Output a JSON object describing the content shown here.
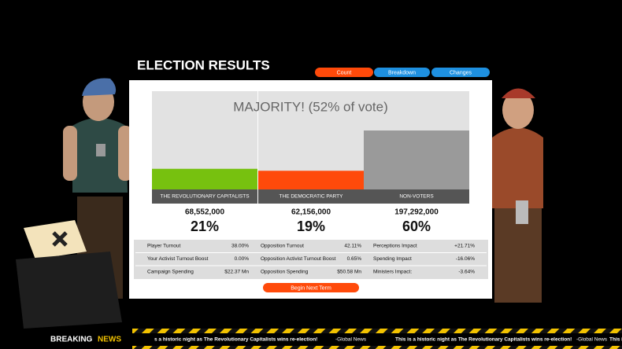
{
  "header": {
    "title": "ELECTION RESULTS",
    "tabs": [
      "Count",
      "Breakdown",
      "Changes"
    ]
  },
  "result": {
    "headline": "MAJORITY! (52% of vote)",
    "parties": [
      {
        "name": "THE REVOLUTIONARY CAPITALISTS",
        "votes": "68,552,000",
        "share": 21,
        "share_label": "21%",
        "color": "#77c10f"
      },
      {
        "name": "THE DEMOCRATIC PARTY",
        "votes": "62,156,000",
        "share": 19,
        "share_label": "19%",
        "color": "#ff4a0a"
      },
      {
        "name": "NON-VOTERS",
        "votes": "197,292,000",
        "share": 60,
        "share_label": "60%",
        "color": "#9a9a9a"
      }
    ]
  },
  "stats": {
    "rows": [
      [
        [
          "Player Turnout",
          "38.00%"
        ],
        [
          "Opposition Turnout",
          "42.11%"
        ],
        [
          "Perceptions Impact",
          "+21.71%"
        ]
      ],
      [
        [
          "Your Activist Turnout Boost",
          "0.00%"
        ],
        [
          "Opposition Activist Turnout Boost",
          "0.65%"
        ],
        [
          "Spending Impact",
          "-16.06%"
        ]
      ],
      [
        [
          "Campaign Spending",
          "$22.37 Mn"
        ],
        [
          "Opposition Spending",
          "$50.58 Mn"
        ],
        [
          "Ministers Impact:",
          "-3.64%"
        ]
      ]
    ]
  },
  "button": "Begin Next Term",
  "ticker": {
    "label": [
      "BREAKING",
      "NEWS"
    ],
    "items": [
      "s a historic night as The Revolutionary Capitalists wins re-election!",
      "-Global News",
      "This is a historic night as The Revolutionary Capitalists wins re-election!",
      "-Global News",
      "This is a hi"
    ]
  }
}
